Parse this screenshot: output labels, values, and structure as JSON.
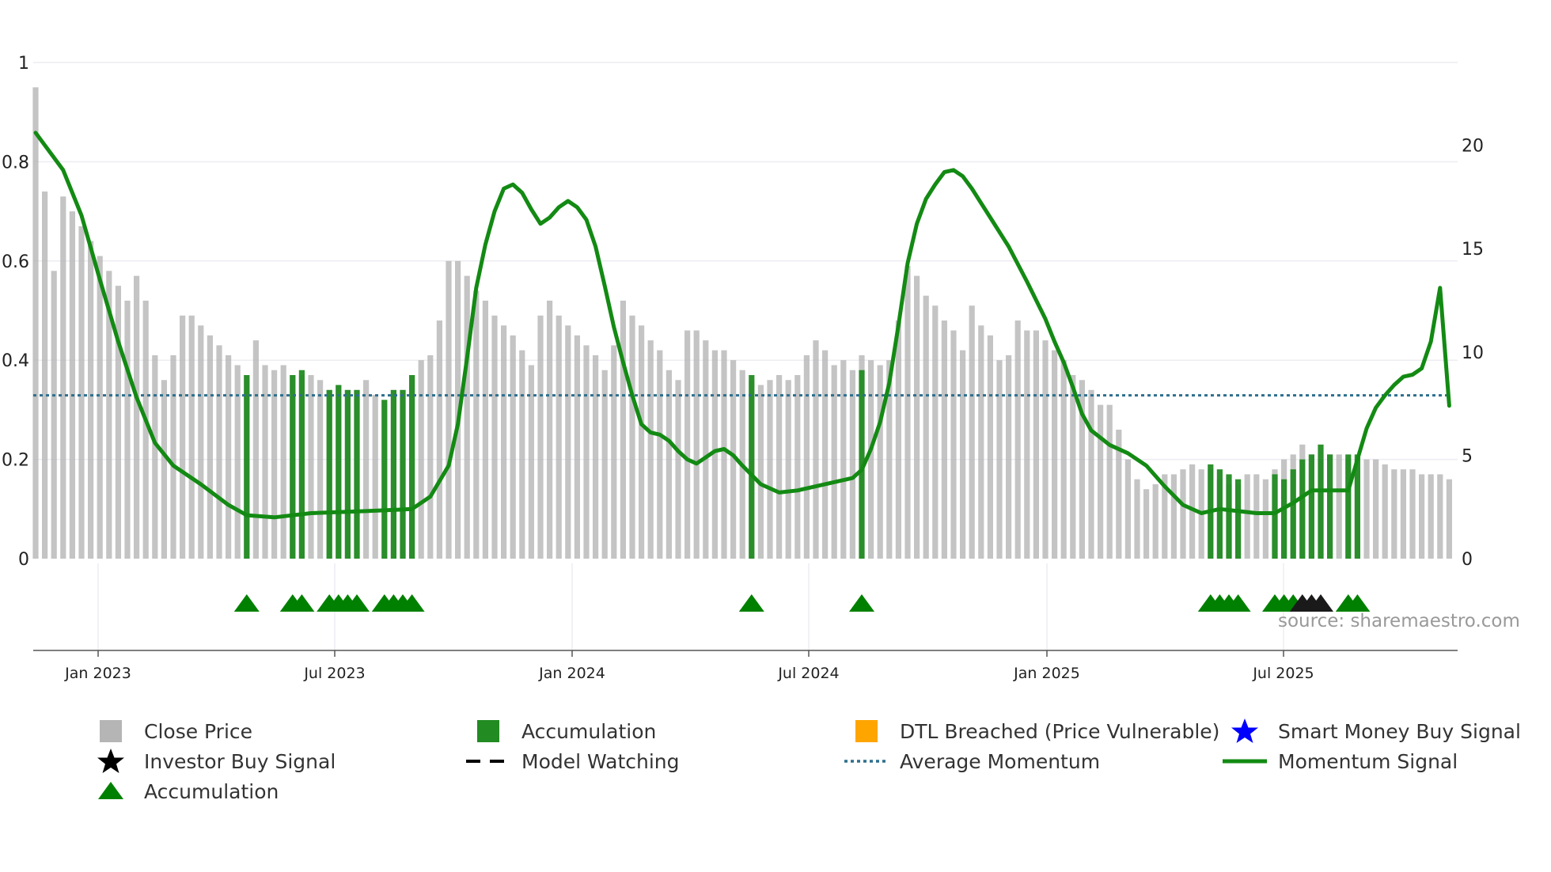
{
  "chart_data": {
    "type": "bar+line",
    "title": "",
    "left_axis": {
      "ticks": [
        "0",
        "0.2",
        "0.4",
        "0.6",
        "0.8",
        "1"
      ],
      "range": [
        0,
        1
      ]
    },
    "right_axis": {
      "ticks": [
        "0",
        "5",
        "10",
        "15",
        "20"
      ],
      "range": [
        0,
        24
      ]
    },
    "x_axis": {
      "ticks": [
        "Jan 2023",
        "Jul 2023",
        "Jan 2024",
        "Jul 2024",
        "Jan 2025",
        "Jul 2025"
      ]
    },
    "close_price": [
      {
        "t": 0,
        "v": 0.95
      },
      {
        "t": 1,
        "v": 0.74
      },
      {
        "t": 2,
        "v": 0.58
      },
      {
        "t": 3,
        "v": 0.73
      },
      {
        "t": 4,
        "v": 0.7
      },
      {
        "t": 5,
        "v": 0.67
      },
      {
        "t": 6,
        "v": 0.64
      },
      {
        "t": 7,
        "v": 0.61
      },
      {
        "t": 8,
        "v": 0.58
      },
      {
        "t": 9,
        "v": 0.55
      },
      {
        "t": 10,
        "v": 0.52
      },
      {
        "t": 11,
        "v": 0.57
      },
      {
        "t": 12,
        "v": 0.52
      },
      {
        "t": 13,
        "v": 0.41
      },
      {
        "t": 14,
        "v": 0.36
      },
      {
        "t": 15,
        "v": 0.41
      },
      {
        "t": 16,
        "v": 0.49
      },
      {
        "t": 17,
        "v": 0.49
      },
      {
        "t": 18,
        "v": 0.47
      },
      {
        "t": 19,
        "v": 0.45
      },
      {
        "t": 20,
        "v": 0.43
      },
      {
        "t": 21,
        "v": 0.41
      },
      {
        "t": 22,
        "v": 0.39
      },
      {
        "t": 23,
        "v": 0.37
      },
      {
        "t": 24,
        "v": 0.44
      },
      {
        "t": 25,
        "v": 0.39
      },
      {
        "t": 26,
        "v": 0.38
      },
      {
        "t": 27,
        "v": 0.39
      },
      {
        "t": 28,
        "v": 0.37
      },
      {
        "t": 29,
        "v": 0.37
      },
      {
        "t": 30,
        "v": 0.37
      },
      {
        "t": 31,
        "v": 0.36
      },
      {
        "t": 32,
        "v": 0.34
      },
      {
        "t": 33,
        "v": 0.35
      },
      {
        "t": 34,
        "v": 0.34
      },
      {
        "t": 35,
        "v": 0.34
      },
      {
        "t": 36,
        "v": 0.36
      },
      {
        "t": 37,
        "v": 0.33
      },
      {
        "t": 38,
        "v": 0.32
      },
      {
        "t": 39,
        "v": 0.34
      },
      {
        "t": 40,
        "v": 0.34
      },
      {
        "t": 41,
        "v": 0.37
      },
      {
        "t": 42,
        "v": 0.4
      },
      {
        "t": 43,
        "v": 0.41
      },
      {
        "t": 44,
        "v": 0.48
      },
      {
        "t": 45,
        "v": 0.6
      },
      {
        "t": 46,
        "v": 0.6
      },
      {
        "t": 47,
        "v": 0.57
      },
      {
        "t": 48,
        "v": 0.54
      },
      {
        "t": 49,
        "v": 0.52
      },
      {
        "t": 50,
        "v": 0.49
      },
      {
        "t": 51,
        "v": 0.47
      },
      {
        "t": 52,
        "v": 0.45
      },
      {
        "t": 53,
        "v": 0.42
      },
      {
        "t": 54,
        "v": 0.39
      },
      {
        "t": 55,
        "v": 0.49
      },
      {
        "t": 56,
        "v": 0.52
      },
      {
        "t": 57,
        "v": 0.49
      },
      {
        "t": 58,
        "v": 0.47
      },
      {
        "t": 59,
        "v": 0.45
      },
      {
        "t": 60,
        "v": 0.43
      },
      {
        "t": 61,
        "v": 0.41
      },
      {
        "t": 62,
        "v": 0.38
      },
      {
        "t": 63,
        "v": 0.43
      },
      {
        "t": 64,
        "v": 0.52
      },
      {
        "t": 65,
        "v": 0.49
      },
      {
        "t": 66,
        "v": 0.47
      },
      {
        "t": 67,
        "v": 0.44
      },
      {
        "t": 68,
        "v": 0.42
      },
      {
        "t": 69,
        "v": 0.38
      },
      {
        "t": 70,
        "v": 0.36
      },
      {
        "t": 71,
        "v": 0.46
      },
      {
        "t": 72,
        "v": 0.46
      },
      {
        "t": 73,
        "v": 0.44
      },
      {
        "t": 74,
        "v": 0.42
      },
      {
        "t": 75,
        "v": 0.42
      },
      {
        "t": 76,
        "v": 0.4
      },
      {
        "t": 77,
        "v": 0.38
      },
      {
        "t": 78,
        "v": 0.36
      },
      {
        "t": 79,
        "v": 0.35
      },
      {
        "t": 80,
        "v": 0.36
      },
      {
        "t": 81,
        "v": 0.37
      },
      {
        "t": 82,
        "v": 0.36
      },
      {
        "t": 83,
        "v": 0.37
      },
      {
        "t": 84,
        "v": 0.41
      },
      {
        "t": 85,
        "v": 0.44
      },
      {
        "t": 86,
        "v": 0.42
      },
      {
        "t": 87,
        "v": 0.39
      },
      {
        "t": 88,
        "v": 0.4
      },
      {
        "t": 89,
        "v": 0.38
      },
      {
        "t": 90,
        "v": 0.41
      },
      {
        "t": 91,
        "v": 0.4
      },
      {
        "t": 92,
        "v": 0.39
      },
      {
        "t": 93,
        "v": 0.4
      },
      {
        "t": 94,
        "v": 0.48
      },
      {
        "t": 95,
        "v": 0.59
      },
      {
        "t": 96,
        "v": 0.57
      },
      {
        "t": 97,
        "v": 0.53
      },
      {
        "t": 98,
        "v": 0.51
      },
      {
        "t": 99,
        "v": 0.48
      },
      {
        "t": 100,
        "v": 0.46
      },
      {
        "t": 101,
        "v": 0.42
      },
      {
        "t": 102,
        "v": 0.51
      },
      {
        "t": 103,
        "v": 0.47
      },
      {
        "t": 104,
        "v": 0.45
      },
      {
        "t": 105,
        "v": 0.4
      },
      {
        "t": 106,
        "v": 0.41
      },
      {
        "t": 107,
        "v": 0.48
      },
      {
        "t": 108,
        "v": 0.46
      },
      {
        "t": 109,
        "v": 0.46
      },
      {
        "t": 110,
        "v": 0.44
      },
      {
        "t": 111,
        "v": 0.42
      },
      {
        "t": 112,
        "v": 0.4
      },
      {
        "t": 113,
        "v": 0.37
      },
      {
        "t": 114,
        "v": 0.36
      },
      {
        "t": 115,
        "v": 0.34
      },
      {
        "t": 116,
        "v": 0.31
      },
      {
        "t": 117,
        "v": 0.31
      },
      {
        "t": 118,
        "v": 0.26
      },
      {
        "t": 119,
        "v": 0.2
      },
      {
        "t": 120,
        "v": 0.16
      },
      {
        "t": 121,
        "v": 0.14
      },
      {
        "t": 122,
        "v": 0.15
      },
      {
        "t": 123,
        "v": 0.17
      },
      {
        "t": 124,
        "v": 0.17
      },
      {
        "t": 125,
        "v": 0.18
      },
      {
        "t": 126,
        "v": 0.19
      },
      {
        "t": 127,
        "v": 0.18
      },
      {
        "t": 128,
        "v": 0.18
      },
      {
        "t": 129,
        "v": 0.16
      },
      {
        "t": 130,
        "v": 0.15
      },
      {
        "t": 131,
        "v": 0.15
      },
      {
        "t": 132,
        "v": 0.17
      },
      {
        "t": 133,
        "v": 0.17
      },
      {
        "t": 134,
        "v": 0.16
      },
      {
        "t": 135,
        "v": 0.18
      },
      {
        "t": 136,
        "v": 0.2
      },
      {
        "t": 137,
        "v": 0.21
      },
      {
        "t": 138,
        "v": 0.23
      },
      {
        "t": 139,
        "v": 0.21
      },
      {
        "t": 140,
        "v": 0.2
      },
      {
        "t": 141,
        "v": 0.21
      },
      {
        "t": 142,
        "v": 0.21
      },
      {
        "t": 143,
        "v": 0.2
      },
      {
        "t": 144,
        "v": 0.2
      },
      {
        "t": 145,
        "v": 0.2
      },
      {
        "t": 146,
        "v": 0.2
      },
      {
        "t": 147,
        "v": 0.19
      },
      {
        "t": 148,
        "v": 0.18
      },
      {
        "t": 149,
        "v": 0.18
      },
      {
        "t": 150,
        "v": 0.18
      },
      {
        "t": 151,
        "v": 0.17
      },
      {
        "t": 152,
        "v": 0.17
      },
      {
        "t": 153,
        "v": 0.17
      },
      {
        "t": 154,
        "v": 0.16
      }
    ],
    "accumulation_bars": [
      {
        "t": 23,
        "v": 0.37
      },
      {
        "t": 28,
        "v": 0.37
      },
      {
        "t": 29,
        "v": 0.38
      },
      {
        "t": 32,
        "v": 0.34
      },
      {
        "t": 33,
        "v": 0.35
      },
      {
        "t": 34,
        "v": 0.34
      },
      {
        "t": 35,
        "v": 0.34
      },
      {
        "t": 38,
        "v": 0.32
      },
      {
        "t": 39,
        "v": 0.34
      },
      {
        "t": 40,
        "v": 0.34
      },
      {
        "t": 41,
        "v": 0.37
      },
      {
        "t": 78,
        "v": 0.37
      },
      {
        "t": 90,
        "v": 0.38
      },
      {
        "t": 128,
        "v": 0.19
      },
      {
        "t": 129,
        "v": 0.18
      },
      {
        "t": 130,
        "v": 0.17
      },
      {
        "t": 131,
        "v": 0.16
      },
      {
        "t": 135,
        "v": 0.17
      },
      {
        "t": 136,
        "v": 0.16
      },
      {
        "t": 137,
        "v": 0.18
      },
      {
        "t": 138,
        "v": 0.2
      },
      {
        "t": 139,
        "v": 0.21
      },
      {
        "t": 140,
        "v": 0.23
      },
      {
        "t": 141,
        "v": 0.21
      },
      {
        "t": 143,
        "v": 0.21
      },
      {
        "t": 144,
        "v": 0.21
      }
    ],
    "accumulation_markers": [
      23,
      28,
      29,
      32,
      33,
      34,
      35,
      38,
      39,
      40,
      41,
      78,
      90,
      128,
      129,
      130,
      131,
      135,
      136,
      137,
      143,
      144
    ],
    "investor_buy_markers": [
      138,
      139,
      140
    ],
    "average_momentum": 7.9,
    "momentum_signal": [
      {
        "t": 0,
        "v": 20.6
      },
      {
        "t": 3,
        "v": 18.8
      },
      {
        "t": 5,
        "v": 16.6
      },
      {
        "t": 7,
        "v": 13.5
      },
      {
        "t": 9,
        "v": 10.5
      },
      {
        "t": 11,
        "v": 7.8
      },
      {
        "t": 13,
        "v": 5.6
      },
      {
        "t": 15,
        "v": 4.5
      },
      {
        "t": 18,
        "v": 3.6
      },
      {
        "t": 21,
        "v": 2.6
      },
      {
        "t": 23,
        "v": 2.1
      },
      {
        "t": 26,
        "v": 2.0
      },
      {
        "t": 30,
        "v": 2.2
      },
      {
        "t": 36,
        "v": 2.3
      },
      {
        "t": 41,
        "v": 2.4
      },
      {
        "t": 43,
        "v": 3.0
      },
      {
        "t": 45,
        "v": 4.5
      },
      {
        "t": 46,
        "v": 6.5
      },
      {
        "t": 47,
        "v": 9.7
      },
      {
        "t": 48,
        "v": 13.1
      },
      {
        "t": 49,
        "v": 15.2
      },
      {
        "t": 50,
        "v": 16.8
      },
      {
        "t": 51,
        "v": 17.9
      },
      {
        "t": 52,
        "v": 18.1
      },
      {
        "t": 53,
        "v": 17.7
      },
      {
        "t": 54,
        "v": 16.9
      },
      {
        "t": 55,
        "v": 16.2
      },
      {
        "t": 56,
        "v": 16.5
      },
      {
        "t": 57,
        "v": 17.0
      },
      {
        "t": 58,
        "v": 17.3
      },
      {
        "t": 59,
        "v": 17.0
      },
      {
        "t": 60,
        "v": 16.4
      },
      {
        "t": 61,
        "v": 15.1
      },
      {
        "t": 62,
        "v": 13.2
      },
      {
        "t": 63,
        "v": 11.2
      },
      {
        "t": 64,
        "v": 9.5
      },
      {
        "t": 65,
        "v": 7.9
      },
      {
        "t": 66,
        "v": 6.5
      },
      {
        "t": 67,
        "v": 6.1
      },
      {
        "t": 68,
        "v": 6.0
      },
      {
        "t": 69,
        "v": 5.7
      },
      {
        "t": 70,
        "v": 5.2
      },
      {
        "t": 71,
        "v": 4.8
      },
      {
        "t": 72,
        "v": 4.6
      },
      {
        "t": 73,
        "v": 4.9
      },
      {
        "t": 74,
        "v": 5.2
      },
      {
        "t": 75,
        "v": 5.3
      },
      {
        "t": 76,
        "v": 5.0
      },
      {
        "t": 77,
        "v": 4.5
      },
      {
        "t": 79,
        "v": 3.6
      },
      {
        "t": 81,
        "v": 3.2
      },
      {
        "t": 83,
        "v": 3.3
      },
      {
        "t": 85,
        "v": 3.5
      },
      {
        "t": 87,
        "v": 3.7
      },
      {
        "t": 89,
        "v": 3.9
      },
      {
        "t": 90,
        "v": 4.3
      },
      {
        "t": 91,
        "v": 5.3
      },
      {
        "t": 92,
        "v": 6.6
      },
      {
        "t": 93,
        "v": 8.5
      },
      {
        "t": 94,
        "v": 11.3
      },
      {
        "t": 95,
        "v": 14.3
      },
      {
        "t": 96,
        "v": 16.2
      },
      {
        "t": 97,
        "v": 17.4
      },
      {
        "t": 98,
        "v": 18.1
      },
      {
        "t": 99,
        "v": 18.7
      },
      {
        "t": 100,
        "v": 18.8
      },
      {
        "t": 101,
        "v": 18.5
      },
      {
        "t": 102,
        "v": 17.9
      },
      {
        "t": 104,
        "v": 16.5
      },
      {
        "t": 106,
        "v": 15.1
      },
      {
        "t": 108,
        "v": 13.4
      },
      {
        "t": 110,
        "v": 11.6
      },
      {
        "t": 111,
        "v": 10.5
      },
      {
        "t": 112,
        "v": 9.5
      },
      {
        "t": 113,
        "v": 8.3
      },
      {
        "t": 114,
        "v": 7.0
      },
      {
        "t": 115,
        "v": 6.2
      },
      {
        "t": 117,
        "v": 5.5
      },
      {
        "t": 119,
        "v": 5.1
      },
      {
        "t": 121,
        "v": 4.5
      },
      {
        "t": 123,
        "v": 3.5
      },
      {
        "t": 125,
        "v": 2.6
      },
      {
        "t": 127,
        "v": 2.2
      },
      {
        "t": 129,
        "v": 2.4
      },
      {
        "t": 131,
        "v": 2.3
      },
      {
        "t": 133,
        "v": 2.2
      },
      {
        "t": 135,
        "v": 2.2
      },
      {
        "t": 137,
        "v": 2.7
      },
      {
        "t": 139,
        "v": 3.3
      },
      {
        "t": 141,
        "v": 3.3
      },
      {
        "t": 143,
        "v": 3.3
      },
      {
        "t": 144,
        "v": 4.8
      },
      {
        "t": 145,
        "v": 6.3
      },
      {
        "t": 146,
        "v": 7.3
      },
      {
        "t": 147,
        "v": 7.9
      },
      {
        "t": 148,
        "v": 8.4
      },
      {
        "t": 149,
        "v": 8.8
      },
      {
        "t": 150,
        "v": 8.9
      },
      {
        "t": 151,
        "v": 9.2
      },
      {
        "t": 152,
        "v": 10.5
      },
      {
        "t": 153,
        "v": 13.1
      },
      {
        "t": 154,
        "v": 7.4
      }
    ],
    "legend": [
      {
        "key": "close_price",
        "label": "Close Price",
        "color": "#b5b5b5"
      },
      {
        "key": "accumulation_bar",
        "label": "Accumulation",
        "color": "#228B22"
      },
      {
        "key": "dtl_breached",
        "label": "DTL Breached (Price Vulnerable)",
        "color": "#FFA500"
      },
      {
        "key": "smart_money",
        "label": "Smart Money Buy Signal",
        "color": "#0000ff"
      },
      {
        "key": "investor_buy",
        "label": "Investor Buy Signal",
        "color": "#000000"
      },
      {
        "key": "model_watching",
        "label": "Model Watching",
        "color": "#000000"
      },
      {
        "key": "average_momentum",
        "label": "Average Momentum",
        "color": "#2e6f8e"
      },
      {
        "key": "momentum_signal",
        "label": "Momentum Signal",
        "color": "#138a13"
      },
      {
        "key": "accumulation_marker",
        "label": "Accumulation",
        "color": "#008000"
      }
    ]
  },
  "source_text": "source: sharemaestro.com"
}
